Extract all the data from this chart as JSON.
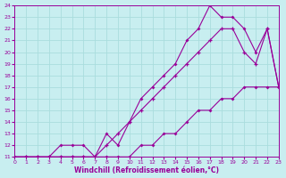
{
  "xlabel": "Windchill (Refroidissement éolien,°C)",
  "bg_color": "#c8eef0",
  "grid_color": "#aadddd",
  "line_color": "#990099",
  "xmin": 0,
  "xmax": 23,
  "ymin": 11,
  "ymax": 24,
  "line1_x": [
    0,
    1,
    2,
    3,
    4,
    5,
    6,
    7,
    8,
    9,
    10,
    11,
    12,
    13,
    14,
    15,
    16,
    17,
    18,
    19,
    20,
    21,
    22,
    23
  ],
  "line1_y": [
    11,
    11,
    11,
    11,
    11,
    11,
    11,
    11,
    11,
    11,
    11,
    12,
    12,
    13,
    13,
    14,
    15,
    15,
    16,
    16,
    17,
    17,
    17,
    17
  ],
  "line2_x": [
    0,
    1,
    2,
    3,
    4,
    5,
    6,
    7,
    8,
    9,
    10,
    11,
    12,
    13,
    14,
    15,
    16,
    17,
    18,
    19,
    20,
    21,
    22,
    23
  ],
  "line2_y": [
    11,
    11,
    11,
    11,
    11,
    11,
    11,
    11,
    12,
    13,
    14,
    15,
    16,
    17,
    18,
    19,
    20,
    21,
    22,
    22,
    20,
    19,
    22,
    17
  ],
  "line3_x": [
    0,
    1,
    2,
    3,
    4,
    5,
    6,
    7,
    8,
    9,
    10,
    11,
    12,
    13,
    14,
    15,
    16,
    17,
    18,
    19,
    20,
    21,
    22,
    23
  ],
  "line3_y": [
    11,
    11,
    11,
    11,
    12,
    12,
    12,
    11,
    13,
    12,
    14,
    16,
    17,
    18,
    19,
    21,
    22,
    24,
    23,
    23,
    22,
    20,
    22,
    17
  ]
}
